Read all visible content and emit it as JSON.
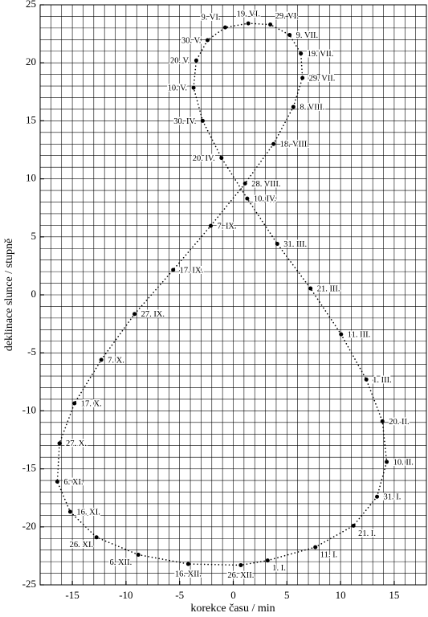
{
  "chart_data": {
    "type": "scatter",
    "x_label": "korekce času / min",
    "y_label": "deklinace slunce / stupně",
    "xlim": [
      -18,
      18
    ],
    "ylim": [
      -25,
      25
    ],
    "xticks": [
      -15,
      -10,
      -5,
      0,
      5,
      10,
      15
    ],
    "yticks": [
      -25,
      -20,
      -15,
      -10,
      -5,
      0,
      5,
      10,
      15,
      20,
      25
    ],
    "xminorticks": [
      -18,
      -17,
      -16,
      -15,
      -14,
      -13,
      -12,
      -11,
      -10,
      -9,
      -8,
      -7,
      -6,
      -5,
      -4,
      -3,
      -2,
      -1,
      0,
      1,
      2,
      3,
      4,
      5,
      6,
      7,
      8,
      9,
      10,
      11,
      12,
      13,
      14,
      15,
      16,
      17,
      18
    ],
    "yminorticks": [
      -25,
      -24,
      -23,
      -22,
      -21,
      -20,
      -19,
      -18,
      -17,
      -16,
      -15,
      -14,
      -13,
      -12,
      -11,
      -10,
      -9,
      -8,
      -7,
      -6,
      -5,
      -4,
      -3,
      -2,
      -1,
      0,
      1,
      2,
      3,
      4,
      5,
      6,
      7,
      8,
      9,
      10,
      11,
      12,
      13,
      14,
      15,
      16,
      17,
      18,
      19,
      20,
      21,
      22,
      23,
      24,
      25
    ],
    "grid": true,
    "color": "#000000",
    "point_labels": [
      "1. I.",
      "11. I.",
      "21. I.",
      "31. I.",
      "10. II.",
      "20. II.",
      "1. III.",
      "11. III.",
      "21. III.",
      "31. III.",
      "10. IV.",
      "20. IV.",
      "30. IV.",
      "10. V.",
      "20. V.",
      "30. V.",
      "9. VI.",
      "19. VI.",
      "29. VI.",
      "9. VII.",
      "19. VII.",
      "29. VII.",
      "8. VIII.",
      "18. VIII.",
      "28. VIII.",
      "7. IX.",
      "17. IX.",
      "27. IX.",
      "7. X.",
      "17. X.",
      "27. X.",
      "6. XI.",
      "16. XI.",
      "26. XI.",
      "6. XII.",
      "16. XII.",
      "26. XII."
    ],
    "x": [
      3.2,
      7.65,
      11.2,
      13.4,
      14.3,
      13.9,
      12.4,
      10.05,
      7.2,
      4.1,
      1.3,
      -1.1,
      -2.85,
      -3.7,
      -3.45,
      -2.4,
      -0.75,
      1.4,
      3.45,
      5.25,
      6.3,
      6.45,
      5.6,
      3.75,
      1.1,
      -2.1,
      -5.6,
      -9.2,
      -12.3,
      -14.8,
      -16.2,
      -16.4,
      -15.2,
      -12.75,
      -8.85,
      -4.2,
      0.7
    ],
    "values": [
      -22.9,
      -21.75,
      -19.9,
      -17.4,
      -14.4,
      -10.9,
      -7.3,
      -3.4,
      0.55,
      4.4,
      8.3,
      11.8,
      15.0,
      17.85,
      20.2,
      21.95,
      23.05,
      23.4,
      23.3,
      22.4,
      20.8,
      18.7,
      16.2,
      13.0,
      9.6,
      5.95,
      2.15,
      -1.65,
      -5.6,
      -9.35,
      -12.8,
      -16.1,
      -18.7,
      -20.9,
      -22.4,
      -23.2,
      -23.3
    ]
  }
}
